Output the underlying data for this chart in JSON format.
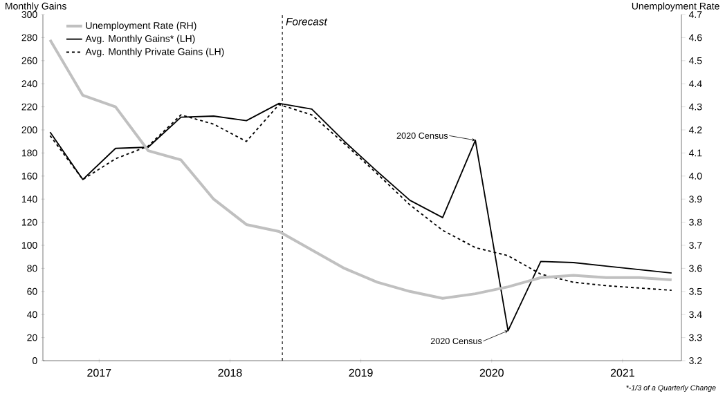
{
  "chart_data": {
    "type": "line",
    "ylabel": "Monthly Gains",
    "y2label": "Unemployment Rate",
    "x": [
      2016.625,
      2016.875,
      2017.125,
      2017.375,
      2017.625,
      2017.875,
      2018.125,
      2018.375,
      2018.625,
      2018.875,
      2019.125,
      2019.375,
      2019.625,
      2019.875,
      2020.125,
      2020.375,
      2020.625,
      2020.875,
      2021.125,
      2021.375
    ],
    "xlim": [
      2016.57,
      2021.45
    ],
    "xticks": [
      2017,
      2018,
      2019,
      2020,
      2021
    ],
    "ylim": [
      0,
      300
    ],
    "yticks": [
      0,
      20,
      40,
      60,
      80,
      100,
      120,
      140,
      160,
      180,
      200,
      220,
      240,
      260,
      280,
      300
    ],
    "y2lim": [
      3.2,
      4.7
    ],
    "y2ticks": [
      3.2,
      3.3,
      3.4,
      3.5,
      3.6,
      3.7,
      3.8,
      3.9,
      {
        "value": 4,
        "label": "4.0"
      },
      4.1,
      4.2,
      4.3,
      4.4,
      4.5,
      4.6,
      4.7
    ],
    "series": [
      {
        "name": "Unemployment Rate (RH)",
        "color": "#c0c0c0",
        "axis": "y2",
        "line_style": "solid",
        "values": [
          4.59,
          4.35,
          4.3,
          4.11,
          4.07,
          3.9,
          3.79,
          3.76,
          3.68,
          3.6,
          3.54,
          3.5,
          3.47,
          3.49,
          3.52,
          3.56,
          3.57,
          3.56,
          3.56,
          3.55
        ]
      },
      {
        "name": "Avg. Monthly Gains* (LH)",
        "color": "#000000",
        "line_style": "solid",
        "values": [
          198,
          157,
          184,
          185,
          211,
          212,
          208,
          223,
          218,
          190,
          164,
          139,
          124,
          191,
          26,
          86,
          85,
          82,
          79,
          76
        ]
      },
      {
        "name": "Avg. Monthly Private Gains (LH)",
        "color": "#000000",
        "line_style": "dashed",
        "values": [
          195,
          157,
          175,
          186,
          213,
          205,
          190,
          222,
          213,
          188,
          162,
          135,
          113,
          98,
          91,
          75,
          68,
          65,
          63,
          61
        ]
      }
    ],
    "ref_lines": [
      {
        "axis": "x",
        "value": 2018.4,
        "label": "Forecast",
        "color": "#000000",
        "line_style": "dashed"
      }
    ],
    "annotations": [
      {
        "text": "2020 Census",
        "x": 2019.875,
        "y": 191
      },
      {
        "text": "2020 Census",
        "x": 2020.125,
        "y": 26
      },
      "*-1/3 of a Quarterly Change"
    ],
    "legend": "top left"
  }
}
